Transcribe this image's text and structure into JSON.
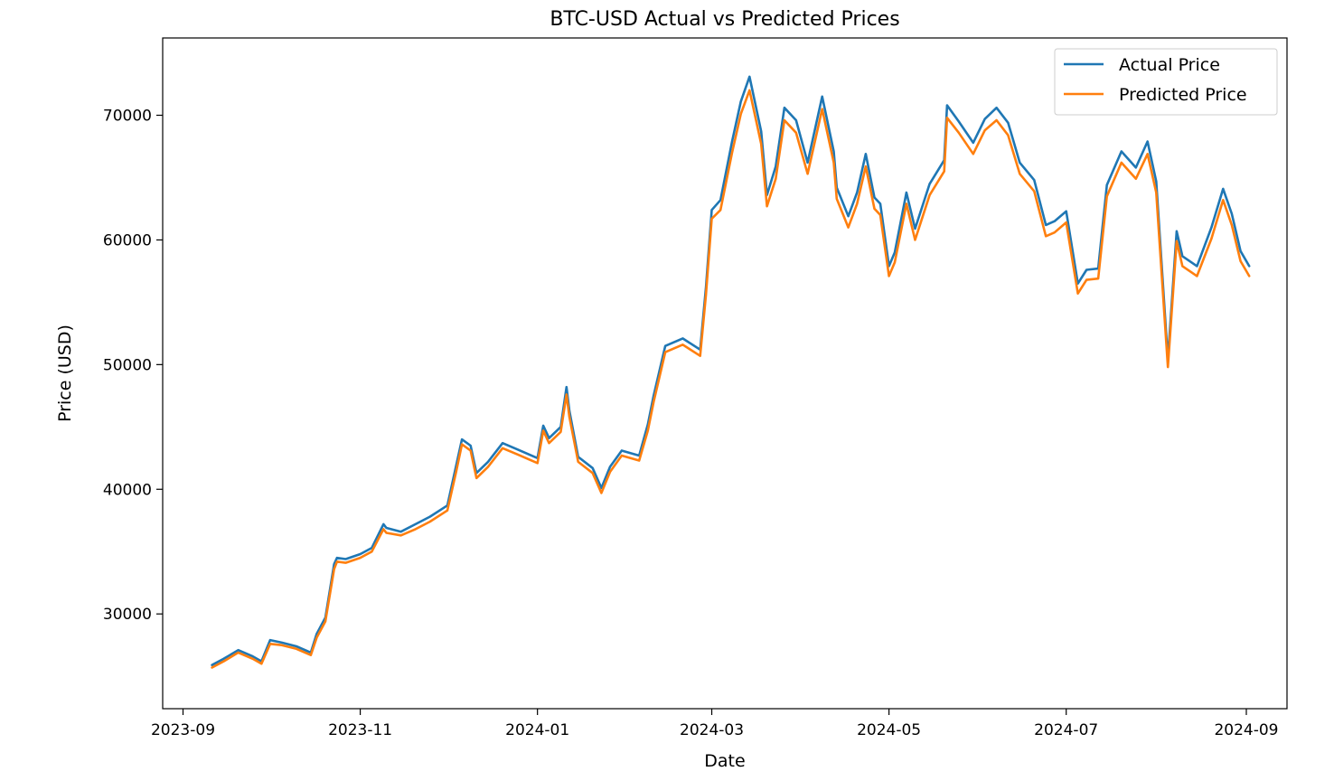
{
  "chart_data": {
    "type": "line",
    "title": "BTC-USD Actual vs Predicted Prices",
    "xlabel": "Date",
    "ylabel": "Price (USD)",
    "x_range": [
      "2023-08-25",
      "2024-09-15"
    ],
    "ylim": [
      22400,
      76200
    ],
    "x_ticks": [
      {
        "date": "2023-09-01",
        "label": "2023-09"
      },
      {
        "date": "2023-11-01",
        "label": "2023-11"
      },
      {
        "date": "2024-01-01",
        "label": "2024-01"
      },
      {
        "date": "2024-03-01",
        "label": "2024-03"
      },
      {
        "date": "2024-05-01",
        "label": "2024-05"
      },
      {
        "date": "2024-07-01",
        "label": "2024-07"
      },
      {
        "date": "2024-09-01",
        "label": "2024-09"
      }
    ],
    "y_ticks": [
      30000,
      40000,
      50000,
      60000,
      70000
    ],
    "grid": false,
    "legend_position": "top-right",
    "x": [
      "2023-09-11",
      "2023-09-15",
      "2023-09-20",
      "2023-09-25",
      "2023-09-28",
      "2023-10-01",
      "2023-10-05",
      "2023-10-10",
      "2023-10-15",
      "2023-10-17",
      "2023-10-20",
      "2023-10-23",
      "2023-10-24",
      "2023-10-27",
      "2023-11-01",
      "2023-11-05",
      "2023-11-09",
      "2023-11-10",
      "2023-11-15",
      "2023-11-20",
      "2023-11-25",
      "2023-12-01",
      "2023-12-04",
      "2023-12-06",
      "2023-12-09",
      "2023-12-11",
      "2023-12-15",
      "2023-12-20",
      "2023-12-25",
      "2024-01-01",
      "2024-01-03",
      "2024-01-05",
      "2024-01-09",
      "2024-01-11",
      "2024-01-12",
      "2024-01-15",
      "2024-01-20",
      "2024-01-23",
      "2024-01-26",
      "2024-01-30",
      "2024-02-05",
      "2024-02-08",
      "2024-02-10",
      "2024-02-14",
      "2024-02-20",
      "2024-02-26",
      "2024-02-28",
      "2024-03-01",
      "2024-03-04",
      "2024-03-08",
      "2024-03-11",
      "2024-03-14",
      "2024-03-18",
      "2024-03-20",
      "2024-03-23",
      "2024-03-26",
      "2024-03-30",
      "2024-04-03",
      "2024-04-08",
      "2024-04-12",
      "2024-04-13",
      "2024-04-17",
      "2024-04-20",
      "2024-04-23",
      "2024-04-26",
      "2024-04-28",
      "2024-05-01",
      "2024-05-03",
      "2024-05-07",
      "2024-05-10",
      "2024-05-15",
      "2024-05-20",
      "2024-05-21",
      "2024-05-25",
      "2024-05-30",
      "2024-06-03",
      "2024-06-07",
      "2024-06-11",
      "2024-06-15",
      "2024-06-20",
      "2024-06-24",
      "2024-06-27",
      "2024-07-01",
      "2024-07-05",
      "2024-07-08",
      "2024-07-12",
      "2024-07-15",
      "2024-07-20",
      "2024-07-25",
      "2024-07-29",
      "2024-08-01",
      "2024-08-05",
      "2024-08-08",
      "2024-08-10",
      "2024-08-15",
      "2024-08-20",
      "2024-08-24",
      "2024-08-27",
      "2024-08-30",
      "2024-09-02"
    ],
    "series": [
      {
        "name": "Actual Price",
        "color": "#1f77b4",
        "values": [
          25900,
          26400,
          27100,
          26600,
          26200,
          27900,
          27700,
          27400,
          26900,
          28400,
          29700,
          34000,
          34500,
          34400,
          34800,
          35300,
          37200,
          36900,
          36600,
          37200,
          37800,
          38700,
          41900,
          44000,
          43500,
          41300,
          42200,
          43700,
          43200,
          42500,
          45100,
          44100,
          45000,
          48200,
          46300,
          42600,
          41700,
          40100,
          41800,
          43100,
          42700,
          45200,
          47500,
          51500,
          52100,
          51200,
          56200,
          62400,
          63200,
          67900,
          71100,
          73100,
          68700,
          63600,
          65900,
          70600,
          69600,
          66200,
          71500,
          67100,
          64200,
          61900,
          63800,
          66900,
          63400,
          62900,
          57900,
          59000,
          63800,
          60900,
          64500,
          66400,
          70800,
          69500,
          67800,
          69700,
          70600,
          69400,
          66200,
          64800,
          61200,
          61500,
          62300,
          56500,
          57600,
          57700,
          64400,
          67100,
          65800,
          67900,
          64700,
          50400,
          60700,
          58700,
          57900,
          61000,
          64100,
          62100,
          59100,
          57900
        ]
      },
      {
        "name": "Predicted Price",
        "color": "#ff7f0e",
        "values": [
          25700,
          26200,
          26900,
          26400,
          26000,
          27600,
          27500,
          27200,
          26700,
          28100,
          29400,
          33600,
          34200,
          34100,
          34500,
          35000,
          36800,
          36500,
          36300,
          36800,
          37400,
          38300,
          41400,
          43600,
          43100,
          40900,
          41800,
          43300,
          42800,
          42100,
          44700,
          43700,
          44600,
          47600,
          45800,
          42200,
          41300,
          39700,
          41400,
          42700,
          42300,
          44700,
          47000,
          51000,
          51600,
          50700,
          55600,
          61700,
          62400,
          67000,
          70100,
          72000,
          67700,
          62700,
          64900,
          69600,
          68600,
          65300,
          70500,
          66200,
          63300,
          61000,
          62900,
          65900,
          62500,
          62000,
          57100,
          58200,
          62900,
          60000,
          63600,
          65500,
          69800,
          68600,
          66900,
          68800,
          69600,
          68400,
          65300,
          63900,
          60300,
          60600,
          61400,
          55700,
          56800,
          56900,
          63500,
          66200,
          64900,
          66900,
          63800,
          49800,
          59900,
          57900,
          57100,
          60100,
          63200,
          61200,
          58300,
          57100
        ]
      }
    ]
  }
}
